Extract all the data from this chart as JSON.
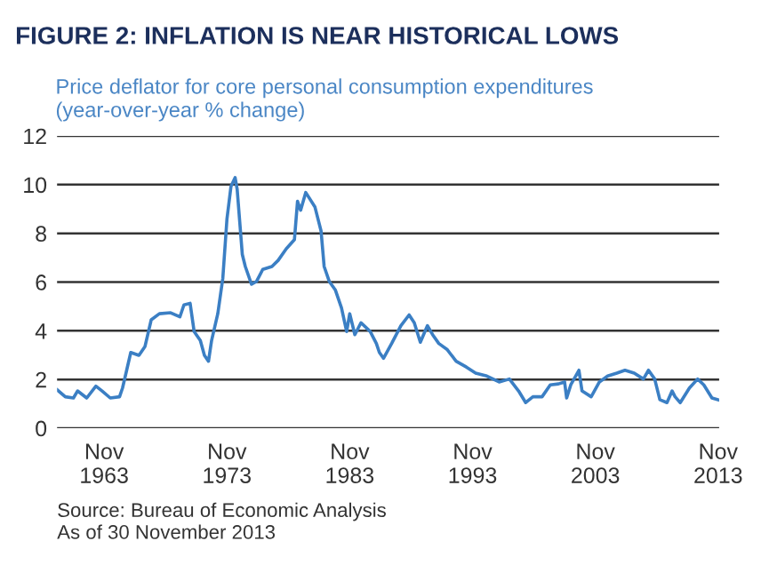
{
  "chart_data": {
    "type": "line",
    "title": "FIGURE 2: INFLATION IS NEAR HISTORICAL LOWS",
    "ylabel": "Price deflator for core personal consumption expenditures\n(year-over-year % change)",
    "x": [
      "1960-01",
      "1960-09",
      "1961-05",
      "1961-09",
      "1962-06",
      "1963-03",
      "1963-09",
      "1964-05",
      "1965-02",
      "1965-05",
      "1965-09",
      "1966-01",
      "1966-09",
      "1967-03",
      "1967-09",
      "1968-05",
      "1969-04",
      "1970-01",
      "1970-05",
      "1970-11",
      "1971-03",
      "1971-09",
      "1972-01",
      "1972-05",
      "1972-08",
      "1973-02",
      "1973-07",
      "1973-11",
      "1974-03",
      "1974-07",
      "1974-09",
      "1975-02",
      "1975-05",
      "1975-11",
      "1976-04",
      "1976-10",
      "1977-07",
      "1978-01",
      "1978-09",
      "1979-05",
      "1979-08",
      "1979-11",
      "1980-04",
      "1981-01",
      "1981-07",
      "1981-10",
      "1982-03",
      "1982-09",
      "1983-03",
      "1983-08",
      "1983-11",
      "1984-04",
      "1984-10",
      "1985-07",
      "1986-01",
      "1986-04",
      "1986-08",
      "1987-04",
      "1988-01",
      "1988-09",
      "1989-02",
      "1989-08",
      "1990-03",
      "1990-08",
      "1991-02",
      "1991-10",
      "1992-07",
      "1993-05",
      "1994-02",
      "1995-01",
      "1996-01",
      "1996-11",
      "1997-08",
      "1998-03",
      "1998-10",
      "1999-07",
      "2000-03",
      "2000-11",
      "2001-05",
      "2001-07",
      "2001-11",
      "2002-07",
      "2002-10",
      "2003-07",
      "2004-03",
      "2004-11",
      "2005-08",
      "2006-04",
      "2007-01",
      "2007-10",
      "2008-03",
      "2008-09",
      "2009-02",
      "2009-09",
      "2010-02",
      "2010-05",
      "2010-10",
      "2011-07",
      "2012-03",
      "2012-09",
      "2013-05",
      "2013-11"
    ],
    "series": [
      {
        "color": "#3b7fc4",
        "values": [
          1.58,
          1.29,
          1.24,
          1.53,
          1.24,
          1.73,
          1.53,
          1.24,
          1.29,
          1.65,
          2.38,
          3.11,
          2.99,
          3.36,
          4.45,
          4.7,
          4.74,
          4.57,
          5.06,
          5.13,
          3.97,
          3.6,
          2.99,
          2.75,
          3.6,
          4.7,
          6.16,
          8.59,
          9.93,
          10.29,
          9.81,
          7.13,
          6.64,
          5.91,
          6.03,
          6.52,
          6.64,
          6.89,
          7.37,
          7.74,
          9.32,
          8.95,
          9.68,
          9.08,
          8.1,
          6.64,
          6.03,
          5.67,
          4.94,
          3.97,
          4.7,
          3.84,
          4.33,
          3.97,
          3.48,
          3.11,
          2.87,
          3.48,
          4.21,
          4.65,
          4.33,
          3.53,
          4.21,
          3.84,
          3.48,
          3.24,
          2.75,
          2.51,
          2.26,
          2.14,
          1.9,
          2.02,
          1.53,
          1.05,
          1.29,
          1.29,
          1.78,
          1.82,
          1.9,
          1.24,
          1.78,
          2.38,
          1.53,
          1.29,
          1.9,
          2.14,
          2.26,
          2.38,
          2.26,
          2.02,
          2.38,
          2.02,
          1.17,
          1.05,
          1.53,
          1.29,
          1.05,
          1.65,
          2.02,
          1.78,
          1.24,
          1.17
        ]
      }
    ],
    "xlim": [
      "1960-01",
      "2013-12"
    ],
    "xticks": [
      {
        "value": "1963-11",
        "label": "Nov\n1963"
      },
      {
        "value": "1973-11",
        "label": "Nov\n1973"
      },
      {
        "value": "1983-11",
        "label": "Nov\n1983"
      },
      {
        "value": "1993-11",
        "label": "Nov\n1993"
      },
      {
        "value": "2003-11",
        "label": "Nov\n2003"
      },
      {
        "value": "2013-11",
        "label": "Nov\n2013"
      }
    ],
    "ylim": [
      0,
      12
    ],
    "yticks": [
      0,
      2,
      4,
      6,
      8,
      10,
      12
    ],
    "grid": "y",
    "marker": "none",
    "line_style": "solid",
    "annotations": [
      "Source: Bureau of Economic Analysis\nAs of 30 November 2013"
    ]
  }
}
